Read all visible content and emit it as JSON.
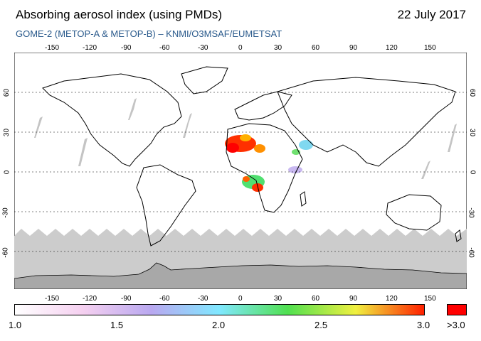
{
  "header": {
    "title": "Absorbing aerosol index (using PMDs)",
    "date": "22 July 2017",
    "subtitle": "GOME-2 (METOP-A & METOP-B)  –  KNMI/O3MSAF/EUMETSAT"
  },
  "map": {
    "lon_labels": [
      "-150",
      "-120",
      "-90",
      "-60",
      "-30",
      "0",
      "30",
      "60",
      "90",
      "120",
      "150"
    ],
    "lat_labels": [
      "60",
      "30",
      "0",
      "-30",
      "-60"
    ],
    "colors": {
      "land_line": "#000000",
      "polar_shade": "#c8c8c8",
      "antarctica": "#a8a8a8",
      "no_data_streak": "#bdbdbd"
    }
  },
  "colorbar": {
    "tick_labels": [
      "1.0",
      "1.5",
      "2.0",
      "2.5",
      "3.0"
    ],
    "over_label": ">3.0",
    "colors": [
      "#ffffff",
      "#f5d0f0",
      "#b9a8f0",
      "#80e8ff",
      "#50e050",
      "#f0f040",
      "#ff2000"
    ],
    "over_color": "#ff0000"
  }
}
